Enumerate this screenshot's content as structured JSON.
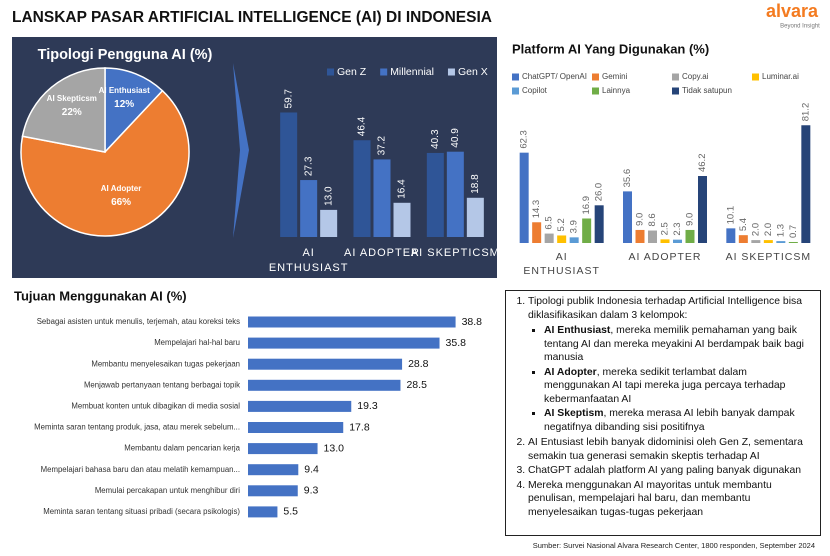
{
  "header": {
    "title": "LANSKAP PASAR ARTIFICIAL INTELLIGENCE  (AI) DI INDONESIA",
    "logo": "alvara",
    "tagline": "Beyond Insight"
  },
  "chart_data": [
    {
      "type": "pie",
      "title": "Tipologi Pengguna AI (%)",
      "categories": [
        "AI Enthusiast",
        "AI Adopter",
        "AI Skepticsm"
      ],
      "values": [
        12,
        66,
        22
      ],
      "value_labels": [
        "12%",
        "66%",
        "22%"
      ],
      "colors": [
        "#4472c4",
        "#ed7d31",
        "#a5a5a5"
      ]
    },
    {
      "type": "bar",
      "categories": [
        "AI ENTHUSIAST",
        "AI ADOPTER",
        "AI SKEPTICSM"
      ],
      "series": [
        {
          "name": "Gen Z",
          "color": "#2f5597",
          "values": [
            59.7,
            46.4,
            40.3
          ]
        },
        {
          "name": "Millennial",
          "color": "#4472c4",
          "values": [
            27.3,
            37.2,
            40.9
          ]
        },
        {
          "name": "Gen X",
          "color": "#b4c7e7",
          "values": [
            13.0,
            16.4,
            18.8
          ],
          "value_labels": [
            "13.0",
            "16.4",
            "18.8"
          ]
        }
      ],
      "ylim": [
        0,
        70
      ]
    },
    {
      "type": "bar",
      "title": "Platform AI Yang Digunakan (%)",
      "categories": [
        "AI ENTHUSIAST",
        "AI ADOPTER",
        "AI SKEPTICSM"
      ],
      "series": [
        {
          "name": "ChatGPT/ OpenAI",
          "color": "#4472c4",
          "values": [
            62.3,
            35.6,
            10.1
          ]
        },
        {
          "name": "Gemini",
          "color": "#ed7d31",
          "values": [
            14.3,
            9.0,
            5.4
          ],
          "value_labels": [
            "14.3",
            "9.0",
            "5.4"
          ]
        },
        {
          "name": "Copy.ai",
          "color": "#a5a5a5",
          "values": [
            6.5,
            8.6,
            2.0
          ],
          "value_labels": [
            "6.5",
            "8.6",
            "2.0"
          ]
        },
        {
          "name": "Luminar.ai",
          "color": "#ffc000",
          "values": [
            5.2,
            2.5,
            2.0
          ],
          "value_labels": [
            "5.2",
            "2.5",
            "2.0"
          ]
        },
        {
          "name": "Copilot",
          "color": "#5b9bd5",
          "values": [
            3.9,
            2.3,
            1.3
          ]
        },
        {
          "name": "Lainnya",
          "color": "#70ad47",
          "values": [
            16.9,
            9.0,
            0.7
          ],
          "value_labels": [
            "16.9",
            "9.0",
            "0.7"
          ]
        },
        {
          "name": "Tidak satupun",
          "color": "#264478",
          "values": [
            26.0,
            46.2,
            81.2
          ],
          "value_labels": [
            "26.0",
            "46.2",
            "81.2"
          ]
        }
      ],
      "ylim": [
        0,
        100
      ]
    },
    {
      "type": "barh",
      "title": "Tujuan Menggunakan AI (%)",
      "categories": [
        "Sebagai asisten untuk menulis, terjemah, atau koreksi teks",
        "Mempelajari hal-hal baru",
        "Membantu menyelesaikan tugas pekerjaan",
        "Menjawab pertanyaan tentang berbagai topik",
        "Membuat konten untuk dibagikan di media sosial",
        "Meminta saran tentang produk, jasa, atau merek sebelum...",
        "Membantu dalam pencarian kerja",
        "Mempelajari bahasa baru dan atau melatih kemampuan...",
        "Memulai percakapan untuk menghibur diri",
        "Meminta saran tentang situasi pribadi (secara psikologis)"
      ],
      "values": [
        38.8,
        35.8,
        28.8,
        28.5,
        19.3,
        17.8,
        13.0,
        9.4,
        9.3,
        5.5
      ],
      "value_labels": [
        "38.8",
        "35.8",
        "28.8",
        "28.5",
        "19.3",
        "17.8",
        "13.0",
        "9.4",
        "9.3",
        "5.5"
      ],
      "color": "#4472c4",
      "xlim": [
        0,
        40
      ]
    }
  ],
  "notes": [
    {
      "text": "Tipologi publik Indonesia terhadap Artificial Intelligence bisa diklasifikasikan dalam 3 kelompok:",
      "items": [
        {
          "term": "AI Enthusiast",
          "text": ", mereka memilik pemahaman yang baik tentang AI dan mereka meyakini AI berdampak baik bagi manusia"
        },
        {
          "term": "AI Adopter",
          "text": ", mereka sedikit terlambat dalam menggunakan AI tapi mereka juga percaya terhadap kebermanfaatan AI"
        },
        {
          "term": "AI Skeptism",
          "text": ", mereka merasa AI lebih banyak dampak negatifnya dibanding sisi positifnya"
        }
      ]
    },
    {
      "text": "AI Entusiast lebih banyak didominisi oleh Gen Z, sementara semakin tua generasi semakin skeptis terhadap AI"
    },
    {
      "text": "ChatGPT adalah platform AI yang paling banyak digunakan"
    },
    {
      "text": "Mereka menggunakan AI mayoritas untuk membantu penulisan, mempelajari hal baru, dan membantu menyelesaikan tugas-tugas pekerjaan"
    }
  ],
  "source": "Sumber: Survei Nasional Alvara Research Center, 1800 responden, September 2024"
}
